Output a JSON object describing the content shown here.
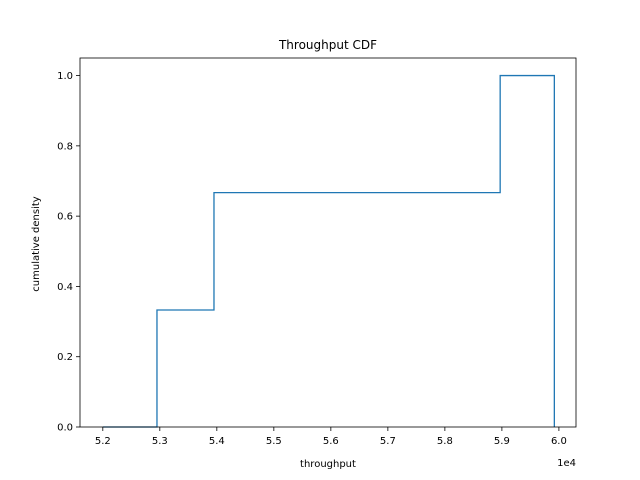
{
  "chart_data": {
    "type": "line",
    "title": "Throughput CDF",
    "xlabel": "throughput",
    "ylabel": "cumulative density",
    "x_offset_label": "1e4",
    "xlim": [
      5.16,
      6.03
    ],
    "ylim": [
      0.0,
      1.05
    ],
    "xticks": [
      "5.2",
      "5.3",
      "5.4",
      "5.5",
      "5.6",
      "5.7",
      "5.8",
      "5.9",
      "6.0"
    ],
    "yticks": [
      "0.0",
      "0.2",
      "0.4",
      "0.6",
      "0.8",
      "1.0"
    ],
    "grid": false,
    "series": [
      {
        "color": "#1f77b4",
        "drawstyle": "step",
        "x": [
          5.2,
          5.295,
          5.295,
          5.395,
          5.395,
          5.897,
          5.897,
          5.992,
          5.992
        ],
        "y": [
          0.0,
          0.0,
          0.333,
          0.333,
          0.667,
          0.667,
          1.0,
          1.0,
          0.0
        ]
      }
    ]
  }
}
